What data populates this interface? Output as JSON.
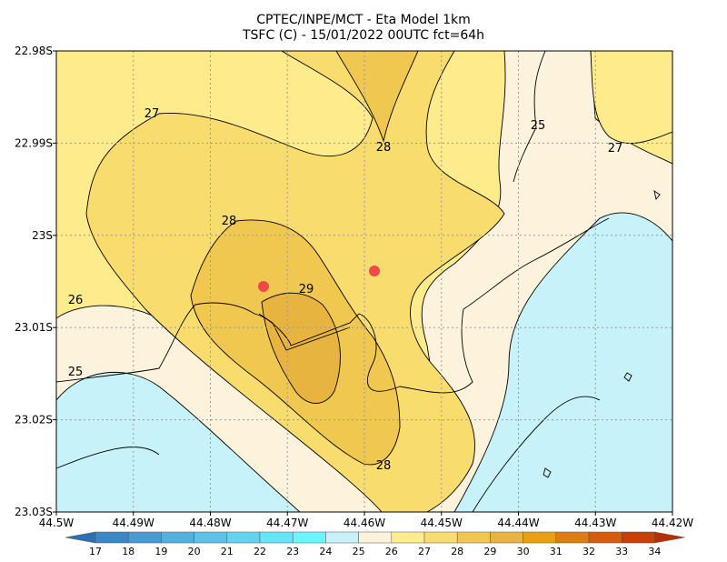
{
  "header": {
    "line1": "CPTEC/INPE/MCT -  Eta Model 1km",
    "line2": "TSFC (C) - 15/01/2022 00UTC fct=64h"
  },
  "axes": {
    "y_ticks": [
      "22.98S",
      "22.99S",
      "23S",
      "23.01S",
      "23.02S",
      "23.03S"
    ],
    "x_ticks": [
      "44.5W",
      "44.49W",
      "44.48W",
      "44.47W",
      "44.46W",
      "44.45W",
      "44.44W",
      "44.43W",
      "44.42W"
    ]
  },
  "contour_labels": [
    "27",
    "28",
    "25",
    "27",
    "28",
    "29",
    "26",
    "25",
    "28"
  ],
  "colorbar": {
    "labels": [
      17,
      18,
      19,
      20,
      21,
      22,
      23,
      24,
      25,
      26,
      27,
      28,
      29,
      30,
      31,
      32,
      33,
      34
    ]
  }
}
